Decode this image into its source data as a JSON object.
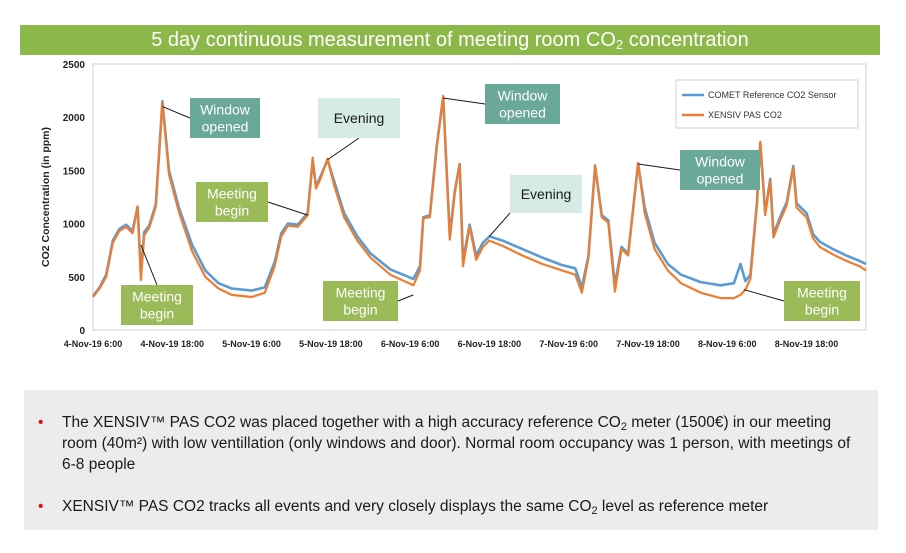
{
  "slide": {
    "title_main": "5 day continuous measurement of meeting room CO",
    "title_sub": "2",
    "title_tail": " concentration"
  },
  "bullets": {
    "b1_a": "The XENSIV™ PAS CO2 was placed together with a high accuracy reference CO",
    "b1_sub": "2",
    "b1_b": " meter (1500€) in our meeting room (40m²) with low ventillation (only windows and door). Normal room occupancy was 1 person, with meetings of 6-8 people",
    "b2_a": "XENSIV™ PAS CO2 tracks all events and very closely displays the same CO",
    "b2_sub": "2",
    "b2_b": " level as reference meter",
    "marker": "•"
  },
  "colors": {
    "title_bar": "#8cb84a",
    "comet_line": "#5b9bd5",
    "xensiv_line": "#ed7d31",
    "callout_teal": "#6aa89a",
    "callout_green": "#9bbb59",
    "callout_light": "#d6ebe5",
    "bullet_marker": "#e01010"
  },
  "chart_data": {
    "type": "line",
    "title": "",
    "ylabel": "CO2 Concentration (in ppm)",
    "xlabel": "",
    "ylim": [
      0,
      2500
    ],
    "yticks": [
      0,
      500,
      1000,
      1500,
      2000,
      2500
    ],
    "xlim": [
      "2019-11-04 06:00",
      "2019-11-09 03:00"
    ],
    "xticks": [
      "4-Nov-19 6:00",
      "4-Nov-19 18:00",
      "5-Nov-19 6:00",
      "5-Nov-19 18:00",
      "6-Nov-19 6:00",
      "6-Nov-19 18:00",
      "7-Nov-19 6:00",
      "7-Nov-19 18:00",
      "8-Nov-19 6:00",
      "8-Nov-19 18:00"
    ],
    "grid": false,
    "legend": "top-right",
    "series": [
      {
        "name": "COMET Reference CO2 Sensor",
        "points": [
          [
            "2019-11-04 06:00",
            320
          ],
          [
            "2019-11-04 07:00",
            400
          ],
          [
            "2019-11-04 08:00",
            520
          ],
          [
            "2019-11-04 09:00",
            840
          ],
          [
            "2019-11-04 10:00",
            950
          ],
          [
            "2019-11-04 11:00",
            990
          ],
          [
            "2019-11-04 12:00",
            930
          ],
          [
            "2019-11-04 12:45",
            1160
          ],
          [
            "2019-11-04 13:15",
            520
          ],
          [
            "2019-11-04 13:45",
            920
          ],
          [
            "2019-11-04 14:30",
            980
          ],
          [
            "2019-11-04 15:30",
            1180
          ],
          [
            "2019-11-04 16:30",
            2150
          ],
          [
            "2019-11-04 17:30",
            1500
          ],
          [
            "2019-11-04 19:00",
            1150
          ],
          [
            "2019-11-04 21:00",
            800
          ],
          [
            "2019-11-04 23:00",
            560
          ],
          [
            "2019-11-05 01:00",
            440
          ],
          [
            "2019-11-05 03:00",
            390
          ],
          [
            "2019-11-05 06:00",
            370
          ],
          [
            "2019-11-05 08:00",
            400
          ],
          [
            "2019-11-05 09:30",
            640
          ],
          [
            "2019-11-05 10:30",
            910
          ],
          [
            "2019-11-05 11:30",
            1000
          ],
          [
            "2019-11-05 13:00",
            990
          ],
          [
            "2019-11-05 14:30",
            1100
          ],
          [
            "2019-11-05 15:15",
            1590
          ],
          [
            "2019-11-05 15:45",
            1350
          ],
          [
            "2019-11-05 16:30",
            1450
          ],
          [
            "2019-11-05 17:30",
            1600
          ],
          [
            "2019-11-05 18:30",
            1400
          ],
          [
            "2019-11-05 20:00",
            1100
          ],
          [
            "2019-11-05 22:00",
            880
          ],
          [
            "2019-11-06 00:00",
            720
          ],
          [
            "2019-11-06 03:00",
            570
          ],
          [
            "2019-11-06 06:30",
            480
          ],
          [
            "2019-11-06 07:30",
            600
          ],
          [
            "2019-11-06 08:00",
            1060
          ],
          [
            "2019-11-06 09:00",
            1080
          ],
          [
            "2019-11-06 10:00",
            1720
          ],
          [
            "2019-11-06 11:00",
            2190
          ],
          [
            "2019-11-06 12:00",
            880
          ],
          [
            "2019-11-06 12:45",
            1300
          ],
          [
            "2019-11-06 13:30",
            1560
          ],
          [
            "2019-11-06 14:00",
            650
          ],
          [
            "2019-11-06 15:00",
            990
          ],
          [
            "2019-11-06 16:00",
            700
          ],
          [
            "2019-11-06 17:00",
            820
          ],
          [
            "2019-11-06 18:00",
            880
          ],
          [
            "2019-11-06 20:00",
            840
          ],
          [
            "2019-11-06 23:00",
            760
          ],
          [
            "2019-11-07 02:00",
            680
          ],
          [
            "2019-11-07 05:00",
            610
          ],
          [
            "2019-11-07 07:00",
            580
          ],
          [
            "2019-11-07 08:00",
            400
          ],
          [
            "2019-11-07 09:00",
            700
          ],
          [
            "2019-11-07 10:00",
            1540
          ],
          [
            "2019-11-07 11:00",
            1080
          ],
          [
            "2019-11-07 12:00",
            1030
          ],
          [
            "2019-11-07 13:00",
            420
          ],
          [
            "2019-11-07 14:00",
            780
          ],
          [
            "2019-11-07 15:00",
            720
          ],
          [
            "2019-11-07 16:30",
            1560
          ],
          [
            "2019-11-07 17:30",
            1150
          ],
          [
            "2019-11-07 19:00",
            820
          ],
          [
            "2019-11-07 21:00",
            620
          ],
          [
            "2019-11-07 23:00",
            520
          ],
          [
            "2019-11-08 02:00",
            450
          ],
          [
            "2019-11-08 05:00",
            420
          ],
          [
            "2019-11-08 07:00",
            440
          ],
          [
            "2019-11-08 08:00",
            620
          ],
          [
            "2019-11-08 08:45",
            460
          ],
          [
            "2019-11-08 09:30",
            520
          ],
          [
            "2019-11-08 10:30",
            1200
          ],
          [
            "2019-11-08 11:00",
            1760
          ],
          [
            "2019-11-08 11:45",
            1100
          ],
          [
            "2019-11-08 12:30",
            1420
          ],
          [
            "2019-11-08 13:00",
            900
          ],
          [
            "2019-11-08 14:00",
            1060
          ],
          [
            "2019-11-08 15:00",
            1200
          ],
          [
            "2019-11-08 16:00",
            1540
          ],
          [
            "2019-11-08 16:30",
            1190
          ],
          [
            "2019-11-08 18:00",
            1100
          ],
          [
            "2019-11-08 19:00",
            900
          ],
          [
            "2019-11-08 20:00",
            830
          ],
          [
            "2019-11-08 22:00",
            760
          ],
          [
            "2019-11-09 00:00",
            700
          ],
          [
            "2019-11-09 02:00",
            650
          ],
          [
            "2019-11-09 03:00",
            620
          ]
        ]
      },
      {
        "name": "XENSIV PAS CO2",
        "points": [
          [
            "2019-11-04 06:00",
            310
          ],
          [
            "2019-11-04 07:00",
            390
          ],
          [
            "2019-11-04 08:00",
            500
          ],
          [
            "2019-11-04 09:00",
            820
          ],
          [
            "2019-11-04 10:00",
            930
          ],
          [
            "2019-11-04 11:00",
            970
          ],
          [
            "2019-11-04 12:00",
            910
          ],
          [
            "2019-11-04 12:45",
            1160
          ],
          [
            "2019-11-04 13:15",
            470
          ],
          [
            "2019-11-04 13:45",
            890
          ],
          [
            "2019-11-04 14:30",
            960
          ],
          [
            "2019-11-04 15:30",
            1160
          ],
          [
            "2019-11-04 16:30",
            2140
          ],
          [
            "2019-11-04 17:30",
            1460
          ],
          [
            "2019-11-04 19:00",
            1110
          ],
          [
            "2019-11-04 21:00",
            740
          ],
          [
            "2019-11-04 23:00",
            500
          ],
          [
            "2019-11-05 01:00",
            390
          ],
          [
            "2019-11-05 03:00",
            330
          ],
          [
            "2019-11-05 06:00",
            310
          ],
          [
            "2019-11-05 08:00",
            350
          ],
          [
            "2019-11-05 09:30",
            600
          ],
          [
            "2019-11-05 10:30",
            880
          ],
          [
            "2019-11-05 11:30",
            980
          ],
          [
            "2019-11-05 13:00",
            970
          ],
          [
            "2019-11-05 14:30",
            1080
          ],
          [
            "2019-11-05 15:15",
            1620
          ],
          [
            "2019-11-05 15:45",
            1330
          ],
          [
            "2019-11-05 16:30",
            1430
          ],
          [
            "2019-11-05 17:30",
            1610
          ],
          [
            "2019-11-05 18:30",
            1360
          ],
          [
            "2019-11-05 20:00",
            1060
          ],
          [
            "2019-11-05 22:00",
            840
          ],
          [
            "2019-11-06 00:00",
            680
          ],
          [
            "2019-11-06 03:00",
            520
          ],
          [
            "2019-11-06 06:30",
            420
          ],
          [
            "2019-11-06 07:30",
            560
          ],
          [
            "2019-11-06 08:00",
            1050
          ],
          [
            "2019-11-06 09:00",
            1060
          ],
          [
            "2019-11-06 10:00",
            1700
          ],
          [
            "2019-11-06 11:00",
            2200
          ],
          [
            "2019-11-06 12:00",
            850
          ],
          [
            "2019-11-06 12:45",
            1280
          ],
          [
            "2019-11-06 13:30",
            1560
          ],
          [
            "2019-11-06 14:00",
            600
          ],
          [
            "2019-11-06 15:00",
            970
          ],
          [
            "2019-11-06 16:00",
            660
          ],
          [
            "2019-11-06 17:00",
            780
          ],
          [
            "2019-11-06 18:00",
            840
          ],
          [
            "2019-11-06 20:00",
            790
          ],
          [
            "2019-11-06 23:00",
            700
          ],
          [
            "2019-11-07 02:00",
            620
          ],
          [
            "2019-11-07 05:00",
            560
          ],
          [
            "2019-11-07 07:00",
            520
          ],
          [
            "2019-11-07 08:00",
            350
          ],
          [
            "2019-11-07 09:00",
            680
          ],
          [
            "2019-11-07 10:00",
            1550
          ],
          [
            "2019-11-07 11:00",
            1060
          ],
          [
            "2019-11-07 12:00",
            1010
          ],
          [
            "2019-11-07 13:00",
            360
          ],
          [
            "2019-11-07 14:00",
            760
          ],
          [
            "2019-11-07 15:00",
            700
          ],
          [
            "2019-11-07 16:30",
            1570
          ],
          [
            "2019-11-07 17:30",
            1100
          ],
          [
            "2019-11-07 19:00",
            760
          ],
          [
            "2019-11-07 21:00",
            560
          ],
          [
            "2019-11-07 23:00",
            440
          ],
          [
            "2019-11-08 02:00",
            350
          ],
          [
            "2019-11-08 05:00",
            300
          ],
          [
            "2019-11-08 07:00",
            300
          ],
          [
            "2019-11-08 08:00",
            330
          ],
          [
            "2019-11-08 08:45",
            380
          ],
          [
            "2019-11-08 09:30",
            480
          ],
          [
            "2019-11-08 10:30",
            1180
          ],
          [
            "2019-11-08 11:00",
            1770
          ],
          [
            "2019-11-08 11:45",
            1080
          ],
          [
            "2019-11-08 12:30",
            1400
          ],
          [
            "2019-11-08 13:00",
            870
          ],
          [
            "2019-11-08 14:00",
            1030
          ],
          [
            "2019-11-08 15:00",
            1170
          ],
          [
            "2019-11-08 16:00",
            1530
          ],
          [
            "2019-11-08 16:30",
            1150
          ],
          [
            "2019-11-08 18:00",
            1060
          ],
          [
            "2019-11-08 19:00",
            860
          ],
          [
            "2019-11-08 20:00",
            780
          ],
          [
            "2019-11-08 22:00",
            710
          ],
          [
            "2019-11-09 00:00",
            650
          ],
          [
            "2019-11-09 02:00",
            600
          ],
          [
            "2019-11-09 03:00",
            560
          ]
        ]
      }
    ],
    "annotations": [
      {
        "text": "Window opened",
        "lines": [
          "Window",
          "opened"
        ],
        "style": "teal",
        "points_to": [
          "2019-11-04 16:30",
          2100
        ]
      },
      {
        "text": "Evening",
        "lines": [
          "Evening"
        ],
        "style": "light",
        "points_to": [
          "2019-11-05 17:30",
          1600
        ]
      },
      {
        "text": "Window opened",
        "lines": [
          "Window",
          "opened"
        ],
        "style": "teal",
        "points_to": [
          "2019-11-06 11:00",
          2180
        ]
      },
      {
        "text": "Window opened",
        "lines": [
          "Window",
          "opened"
        ],
        "style": "teal",
        "points_to": [
          "2019-11-07 16:30",
          1560
        ]
      },
      {
        "text": "Meeting begin",
        "lines": [
          "Meeting",
          "begin"
        ],
        "style": "green",
        "points_to": [
          "2019-11-05 14:30",
          1080
        ]
      },
      {
        "text": "Evening",
        "lines": [
          "Evening"
        ],
        "style": "light",
        "points_to": [
          "2019-11-06 18:00",
          880
        ]
      },
      {
        "text": "Meeting begin",
        "lines": [
          "Meeting",
          "begin"
        ],
        "style": "green",
        "points_to": [
          "2019-11-04 13:15",
          800
        ]
      },
      {
        "text": "Meeting begin",
        "lines": [
          "Meeting",
          "begin"
        ],
        "style": "green",
        "points_to": [
          "2019-11-06 06:30",
          330
        ]
      },
      {
        "text": "Meeting begin",
        "lines": [
          "Meeting",
          "begin"
        ],
        "style": "green",
        "points_to": [
          "2019-11-08 08:30",
          380
        ]
      }
    ]
  }
}
